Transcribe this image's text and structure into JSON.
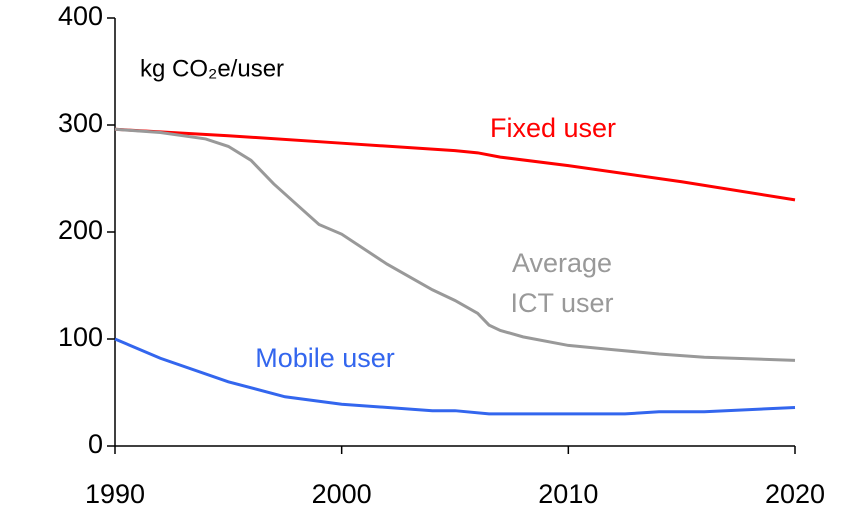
{
  "chart_data": {
    "type": "line",
    "unit_label": "kg CO₂e/user",
    "xlim": [
      1990,
      2020
    ],
    "xticks": [
      1990,
      2000,
      2010,
      2020
    ],
    "ylim": [
      0,
      400
    ],
    "yticks": [
      0,
      100,
      200,
      300,
      400
    ],
    "series": [
      {
        "color": "#ff0000",
        "x": [
          1990,
          1995,
          2000,
          2005,
          2006,
          2007,
          2010,
          2015,
          2020
        ],
        "values": [
          296,
          290,
          283,
          276,
          274,
          270,
          262,
          247,
          230
        ]
      },
      {
        "color": "#999999",
        "x": [
          1990,
          1992,
          1994,
          1995,
          1996,
          1997,
          1998,
          1999,
          2000,
          2002,
          2004,
          2005,
          2006,
          2006.5,
          2007,
          2008,
          2010,
          2012,
          2014,
          2016,
          2020
        ],
        "values": [
          296,
          293,
          287,
          280,
          267,
          245,
          226,
          207,
          198,
          170,
          146,
          136,
          124,
          113,
          108,
          102,
          94,
          90,
          86,
          83,
          80
        ]
      },
      {
        "color": "#3366ee",
        "x": [
          1990,
          1992,
          1995,
          1997.5,
          2000,
          2004,
          2005,
          2006.5,
          2010,
          2012.5,
          2014,
          2016,
          2020
        ],
        "values": [
          100,
          82,
          60,
          46,
          39,
          33,
          33,
          30,
          30,
          30,
          32,
          32,
          36
        ]
      }
    ],
    "annotations": [
      {
        "lines": [
          "Fixed user"
        ],
        "color": "#ff0000"
      },
      {
        "lines": [
          "Average",
          "ICT user"
        ],
        "color": "#999999"
      },
      {
        "lines": [
          "Mobile user"
        ],
        "color": "#3366ee"
      }
    ]
  }
}
